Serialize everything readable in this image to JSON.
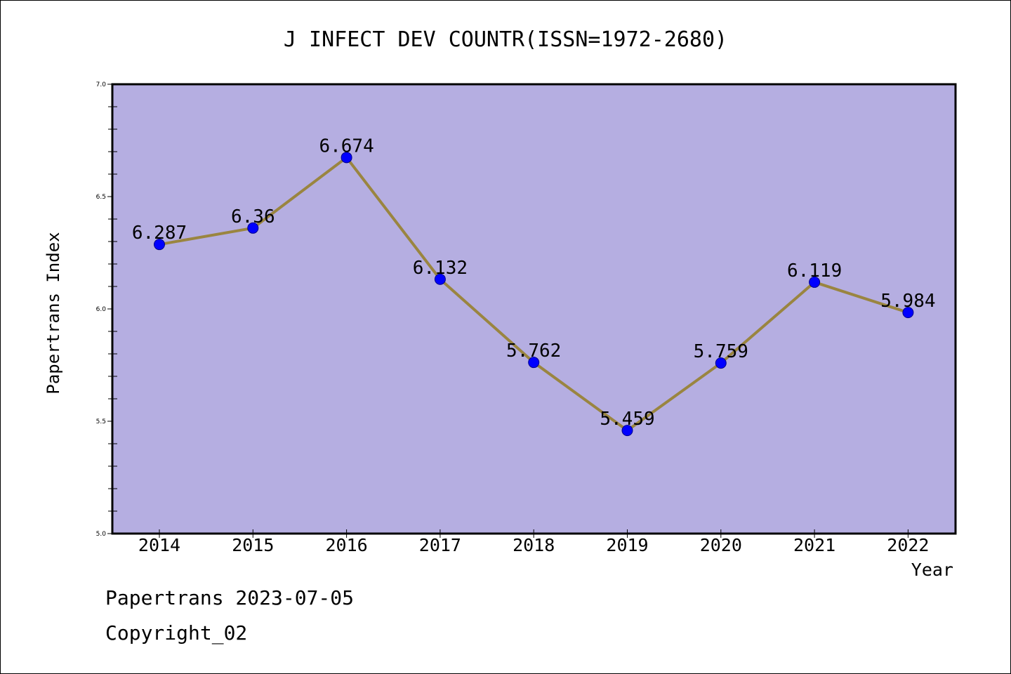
{
  "chart_data": {
    "type": "line",
    "title": "J INFECT DEV COUNTR(ISSN=1972-2680)",
    "xlabel": "Year",
    "ylabel": "Papertrans Index",
    "categories": [
      "2014",
      "2015",
      "2016",
      "2017",
      "2018",
      "2019",
      "2020",
      "2021",
      "2022"
    ],
    "series": [
      {
        "values": [
          6.287,
          6.36,
          6.674,
          6.132,
          5.762,
          5.459,
          5.759,
          6.119,
          5.984
        ],
        "labels": [
          "6.287",
          "6.36",
          "6.674",
          "6.132",
          "5.762",
          "5.459",
          "5.759",
          "6.119",
          "5.984"
        ]
      }
    ],
    "ylim": [
      5.0,
      7.0
    ],
    "yticks": [
      "5.0",
      "5.5",
      "6.0",
      "6.5",
      "7.0"
    ],
    "grid": false,
    "legend": "none",
    "colors": {
      "plot_background": "#b5aee1",
      "line": "#9a8540",
      "marker": "#0000ff",
      "marker_edge": "#00008b"
    }
  },
  "footer": {
    "line1": "Papertrans 2023-07-05",
    "line2": "Copyright_02"
  }
}
